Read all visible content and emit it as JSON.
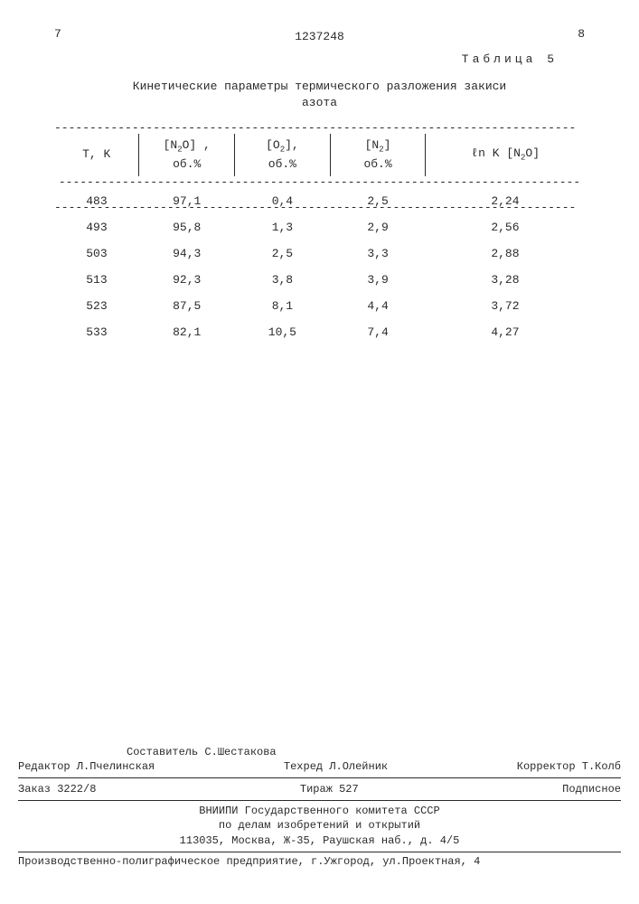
{
  "header": {
    "page_left": "7",
    "doc_number": "1237248",
    "page_right": "8",
    "table_label": "Таблица 5",
    "caption_line1": "Кинетические параметры термического разложения закиси азота"
  },
  "table": {
    "columns": [
      {
        "label_html": "T, K"
      },
      {
        "label_html": "[N<sub>2</sub>O] ,<br>об.%"
      },
      {
        "label_html": "[O<sub>2</sub>],<br>об.%"
      },
      {
        "label_html": "[N<sub>2</sub>]<br>об.%"
      },
      {
        "label_html": "ℓn K [N<sub>2</sub>O]"
      }
    ],
    "rows": [
      [
        "483",
        "97,1",
        "0,4",
        "2,5",
        "2,24"
      ],
      [
        "493",
        "95,8",
        "1,3",
        "2,9",
        "2,56"
      ],
      [
        "503",
        "94,3",
        "2,5",
        "3,3",
        "2,88"
      ],
      [
        "513",
        "92,3",
        "3,8",
        "3,9",
        "3,28"
      ],
      [
        "523",
        "87,5",
        "8,1",
        "4,4",
        "3,72"
      ],
      [
        "533",
        "82,1",
        "10,5",
        "7,4",
        "4,27"
      ]
    ],
    "col_widths_pct": [
      16,
      18,
      18,
      18,
      30
    ],
    "text_color": "#2a2a2a",
    "background_color": "#ffffff",
    "font_family": "Courier New",
    "font_size_pt": 10
  },
  "footer": {
    "compiler": "Составитель С.Шестакова",
    "editor": "Редактор Л.Пчелинская",
    "techred": "Техред Л.Олейник",
    "corrector": "Корректор Т.Колб",
    "order": "Заказ 3222/8",
    "tirazh": "Тираж 527",
    "subscription": "Подписное",
    "org_line1": "ВНИИПИ Государственного комитета СССР",
    "org_line2": "по делам изобретений и открытий",
    "address": "113035, Москва, Ж-35, Раушская наб., д. 4/5",
    "printer": "Производственно-полиграфическое предприятие, г.Ужгород, ул.Проектная, 4"
  }
}
